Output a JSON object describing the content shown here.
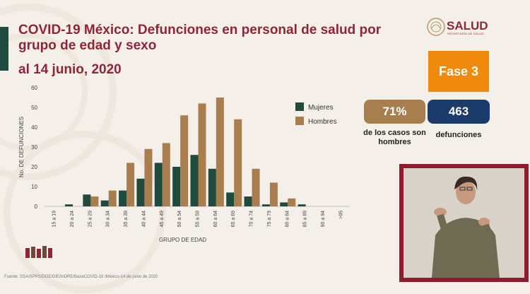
{
  "header": {
    "title": "COVID-19 México: Defunciones en personal de salud por grupo de edad y sexo",
    "date": "al 14 junio, 2020"
  },
  "logo": {
    "name": "SALUD",
    "subtitle": "SECRETARÍA DE SALUD"
  },
  "badges": {
    "fase": "Fase 3",
    "pct_value": "71%",
    "pct_caption": "de los casos son hombres",
    "deaths_value": "463",
    "deaths_caption": "defunciones"
  },
  "colors": {
    "mujeres": "#1f4b3f",
    "hombres": "#a87e4e",
    "title": "#8e2637",
    "fase": "#f08a0c",
    "navy": "#1b3c6a"
  },
  "source": "Fuente: SSA/SPPS/DGE/DIE/InDRE/BaseCOVID-19 /México-14 de junio de 2020",
  "chart_data": {
    "type": "bar",
    "title": "",
    "xlabel": "GRUPO DE EDAD",
    "ylabel": "No. DE DEFUNCIONES",
    "ylim": [
      0,
      60
    ],
    "yticks": [
      0,
      10,
      20,
      30,
      40,
      50,
      60
    ],
    "categories": [
      "15 a 19",
      "20 a 24",
      "25 a 29",
      "30 a 34",
      "35 a 39",
      "40 a 44",
      "45 a 49",
      "50 a 54",
      "55 a 59",
      "60 a 64",
      "65 a 69",
      "70 a 74",
      "75 a 79",
      "80 a 84",
      "85 a 89",
      "90 a 94",
      ">95"
    ],
    "series": [
      {
        "name": "Mujeres",
        "color": "#1f4b3f",
        "values": [
          0,
          1,
          6,
          3,
          8,
          14,
          22,
          20,
          26,
          19,
          7,
          5,
          1,
          2,
          1,
          0,
          0
        ]
      },
      {
        "name": "Hombres",
        "color": "#a87e4e",
        "values": [
          0,
          0,
          5,
          8,
          22,
          29,
          32,
          46,
          52,
          55,
          44,
          19,
          12,
          4,
          0,
          0,
          0
        ]
      }
    ],
    "legend_position": "right",
    "grid": false
  }
}
